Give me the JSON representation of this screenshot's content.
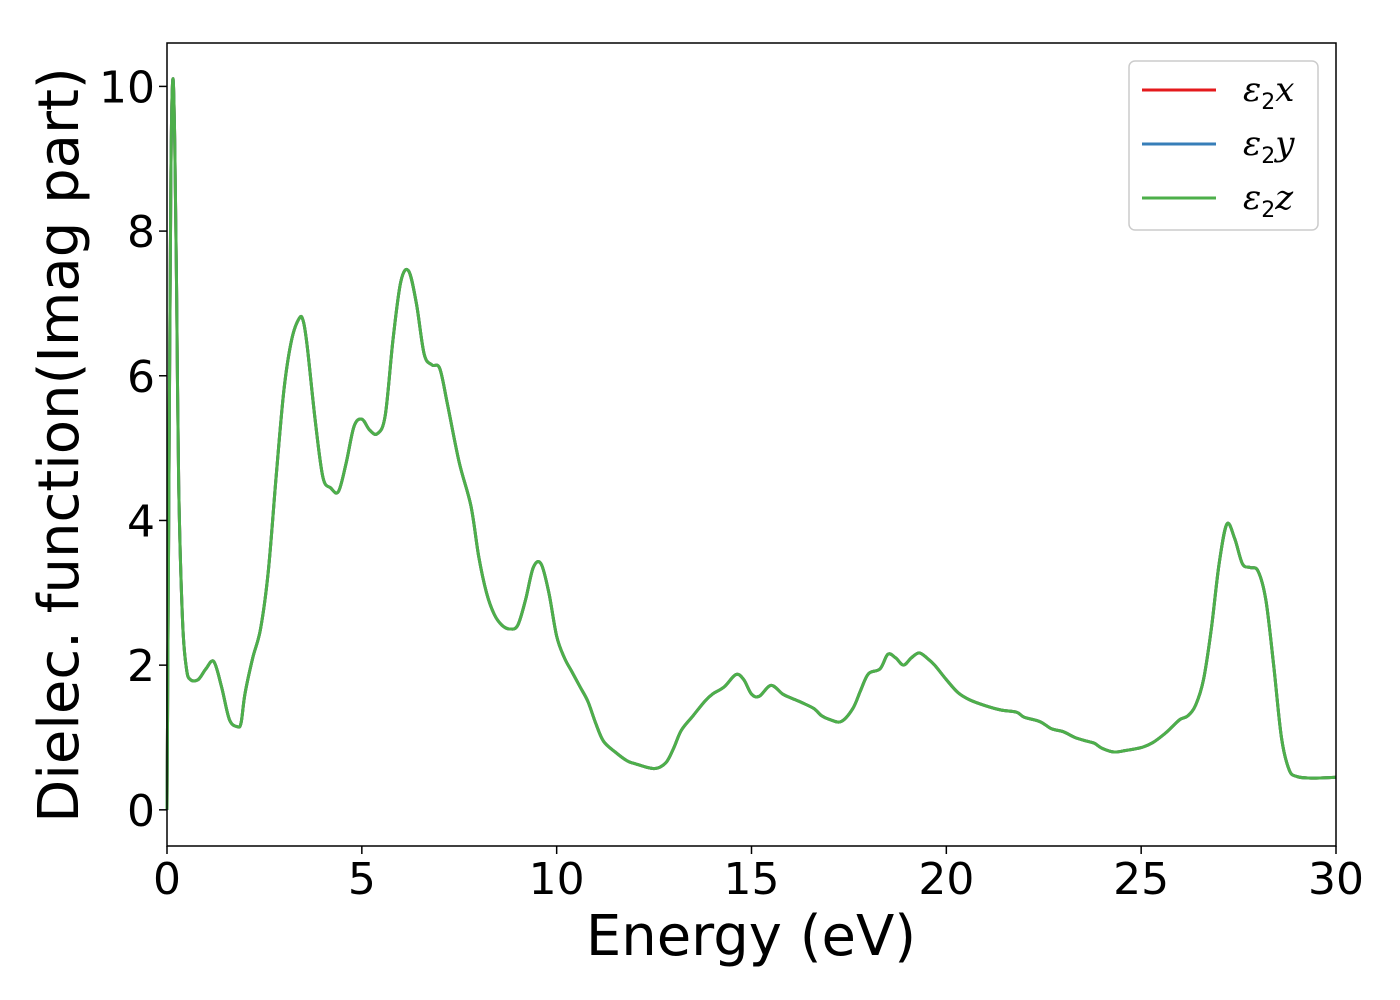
{
  "chart_data": {
    "type": "line",
    "title": "",
    "xlabel": "Energy (eV)",
    "ylabel": "Dielec. function(Imag part)",
    "xlim": [
      0,
      30
    ],
    "ylim": [
      -0.5,
      10.6
    ],
    "xticks": [
      0,
      5,
      10,
      15,
      20,
      25,
      30
    ],
    "yticks": [
      0,
      2,
      4,
      6,
      8,
      10
    ],
    "xtick_labels": [
      "0",
      "5",
      "10",
      "15",
      "20",
      "25",
      "30"
    ],
    "ytick_labels": [
      "0",
      "2",
      "4",
      "6",
      "8",
      "10"
    ],
    "grid": false,
    "legend_position": "top-right",
    "series": [
      {
        "name": "ε2x",
        "legend_base": "ε",
        "legend_sub": "2",
        "legend_var": "x",
        "color": "#e41a1c"
      },
      {
        "name": "ε2y",
        "legend_base": "ε",
        "legend_sub": "2",
        "legend_var": "y",
        "color": "#377eb8"
      },
      {
        "name": "ε2z",
        "legend_base": "ε",
        "legend_sub": "2",
        "legend_var": "z",
        "color": "#4daf4a"
      }
    ],
    "x": [
      0.0,
      0.05,
      0.1,
      0.15,
      0.2,
      0.25,
      0.3,
      0.4,
      0.5,
      0.6,
      0.8,
      1.0,
      1.2,
      1.4,
      1.6,
      1.8,
      1.9,
      2.0,
      2.2,
      2.4,
      2.6,
      2.8,
      3.0,
      3.2,
      3.4,
      3.5,
      3.6,
      3.8,
      4.0,
      4.2,
      4.4,
      4.6,
      4.8,
      5.0,
      5.2,
      5.4,
      5.6,
      5.8,
      6.0,
      6.2,
      6.4,
      6.6,
      6.8,
      7.0,
      7.2,
      7.5,
      7.8,
      8.0,
      8.2,
      8.4,
      8.6,
      8.8,
      9.0,
      9.2,
      9.4,
      9.6,
      9.8,
      10.0,
      10.2,
      10.4,
      10.6,
      10.8,
      11.0,
      11.2,
      11.5,
      11.8,
      12.0,
      12.5,
      12.8,
      13.0,
      13.2,
      13.5,
      13.8,
      14.0,
      14.3,
      14.6,
      14.8,
      15.0,
      15.2,
      15.5,
      15.8,
      16.0,
      16.3,
      16.6,
      16.8,
      17.0,
      17.3,
      17.6,
      17.8,
      18.0,
      18.3,
      18.5,
      18.7,
      18.9,
      19.1,
      19.3,
      19.5,
      19.7,
      20.0,
      20.3,
      20.6,
      21.0,
      21.4,
      21.8,
      22.0,
      22.4,
      22.7,
      23.0,
      23.3,
      23.6,
      23.8,
      24.0,
      24.3,
      24.6,
      25.0,
      25.3,
      25.6,
      25.8,
      26.0,
      26.2,
      26.4,
      26.6,
      26.8,
      27.0,
      27.2,
      27.4,
      27.6,
      27.8,
      28.0,
      28.2,
      28.4,
      28.6,
      28.8,
      29.0,
      29.3,
      29.6,
      30.0
    ],
    "y": [
      0.0,
      4.5,
      8.8,
      10.1,
      9.2,
      7.0,
      4.5,
      2.6,
      1.95,
      1.8,
      1.8,
      1.95,
      2.05,
      1.7,
      1.25,
      1.15,
      1.2,
      1.6,
      2.1,
      2.5,
      3.3,
      4.6,
      5.8,
      6.5,
      6.8,
      6.75,
      6.4,
      5.4,
      4.6,
      4.45,
      4.4,
      4.8,
      5.3,
      5.4,
      5.25,
      5.2,
      5.45,
      6.5,
      7.3,
      7.45,
      7.0,
      6.3,
      6.15,
      6.1,
      5.6,
      4.8,
      4.2,
      3.5,
      3.0,
      2.7,
      2.55,
      2.5,
      2.55,
      2.9,
      3.35,
      3.4,
      3.0,
      2.4,
      2.1,
      1.9,
      1.7,
      1.5,
      1.2,
      0.95,
      0.8,
      0.68,
      0.64,
      0.57,
      0.65,
      0.85,
      1.1,
      1.3,
      1.5,
      1.6,
      1.7,
      1.87,
      1.8,
      1.6,
      1.57,
      1.72,
      1.6,
      1.55,
      1.48,
      1.4,
      1.3,
      1.25,
      1.22,
      1.4,
      1.65,
      1.88,
      1.95,
      2.15,
      2.1,
      2.0,
      2.1,
      2.17,
      2.1,
      2.0,
      1.8,
      1.62,
      1.52,
      1.44,
      1.38,
      1.35,
      1.28,
      1.22,
      1.12,
      1.08,
      1.0,
      0.95,
      0.92,
      0.85,
      0.8,
      0.82,
      0.86,
      0.93,
      1.05,
      1.15,
      1.25,
      1.3,
      1.45,
      1.8,
      2.5,
      3.4,
      3.95,
      3.75,
      3.4,
      3.35,
      3.3,
      2.9,
      2.0,
      1.0,
      0.55,
      0.46,
      0.44,
      0.44,
      0.45
    ]
  }
}
